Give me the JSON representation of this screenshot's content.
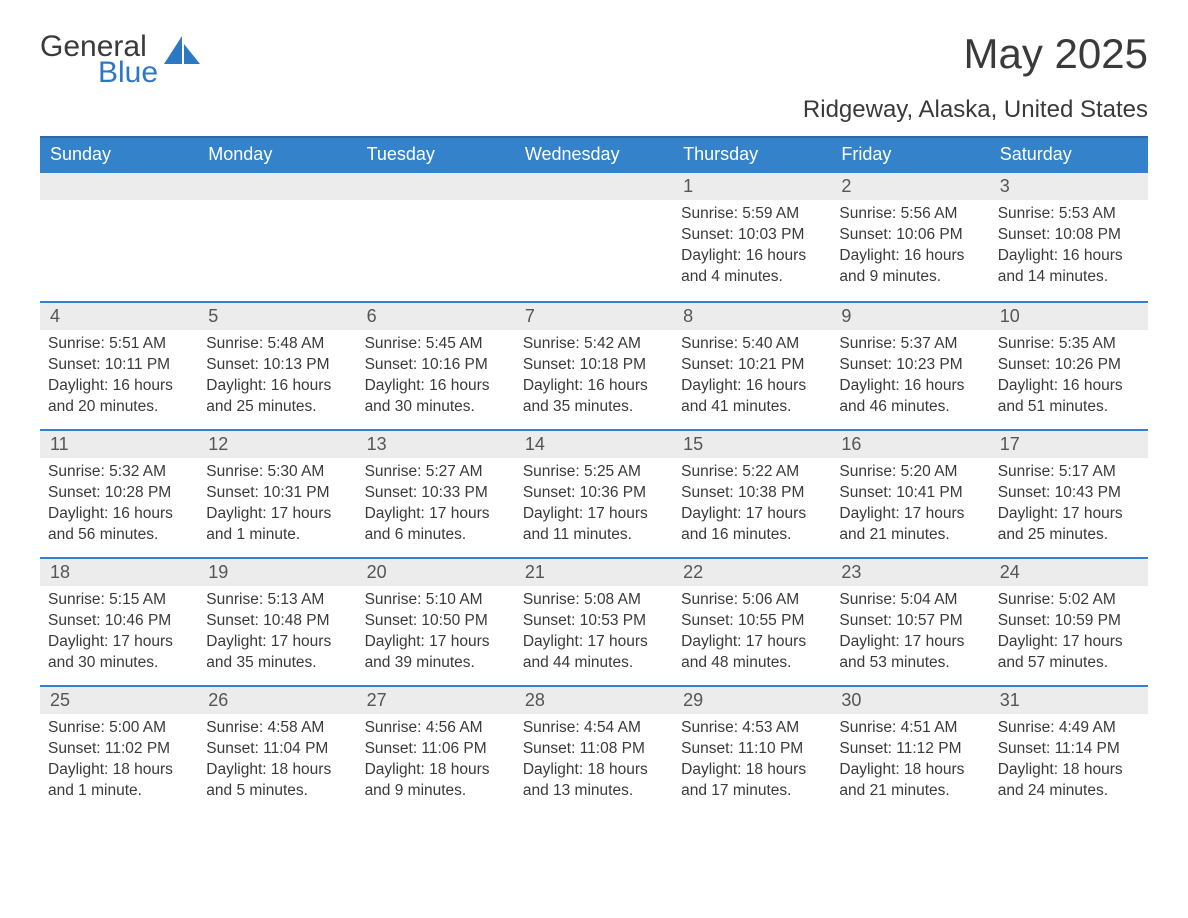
{
  "logo": {
    "text1": "General",
    "text2": "Blue",
    "accent_color": "#2d78c3"
  },
  "title": "May 2025",
  "location": "Ridgeway, Alaska, United States",
  "colors": {
    "header_bg": "#3482c9",
    "header_border": "#2d6aa8",
    "row_divider": "#3482c9",
    "daynum_bg": "#ececec",
    "text": "#3a3a3a",
    "background": "#ffffff"
  },
  "fonts": {
    "title_size": 42,
    "location_size": 24,
    "dow_size": 18,
    "body_size": 15.5
  },
  "days_of_week": [
    "Sunday",
    "Monday",
    "Tuesday",
    "Wednesday",
    "Thursday",
    "Friday",
    "Saturday"
  ],
  "weeks": [
    [
      {
        "n": "",
        "sunrise": "",
        "sunset": "",
        "daylight": ""
      },
      {
        "n": "",
        "sunrise": "",
        "sunset": "",
        "daylight": ""
      },
      {
        "n": "",
        "sunrise": "",
        "sunset": "",
        "daylight": ""
      },
      {
        "n": "",
        "sunrise": "",
        "sunset": "",
        "daylight": ""
      },
      {
        "n": "1",
        "sunrise": "Sunrise: 5:59 AM",
        "sunset": "Sunset: 10:03 PM",
        "daylight": "Daylight: 16 hours and 4 minutes."
      },
      {
        "n": "2",
        "sunrise": "Sunrise: 5:56 AM",
        "sunset": "Sunset: 10:06 PM",
        "daylight": "Daylight: 16 hours and 9 minutes."
      },
      {
        "n": "3",
        "sunrise": "Sunrise: 5:53 AM",
        "sunset": "Sunset: 10:08 PM",
        "daylight": "Daylight: 16 hours and 14 minutes."
      }
    ],
    [
      {
        "n": "4",
        "sunrise": "Sunrise: 5:51 AM",
        "sunset": "Sunset: 10:11 PM",
        "daylight": "Daylight: 16 hours and 20 minutes."
      },
      {
        "n": "5",
        "sunrise": "Sunrise: 5:48 AM",
        "sunset": "Sunset: 10:13 PM",
        "daylight": "Daylight: 16 hours and 25 minutes."
      },
      {
        "n": "6",
        "sunrise": "Sunrise: 5:45 AM",
        "sunset": "Sunset: 10:16 PM",
        "daylight": "Daylight: 16 hours and 30 minutes."
      },
      {
        "n": "7",
        "sunrise": "Sunrise: 5:42 AM",
        "sunset": "Sunset: 10:18 PM",
        "daylight": "Daylight: 16 hours and 35 minutes."
      },
      {
        "n": "8",
        "sunrise": "Sunrise: 5:40 AM",
        "sunset": "Sunset: 10:21 PM",
        "daylight": "Daylight: 16 hours and 41 minutes."
      },
      {
        "n": "9",
        "sunrise": "Sunrise: 5:37 AM",
        "sunset": "Sunset: 10:23 PM",
        "daylight": "Daylight: 16 hours and 46 minutes."
      },
      {
        "n": "10",
        "sunrise": "Sunrise: 5:35 AM",
        "sunset": "Sunset: 10:26 PM",
        "daylight": "Daylight: 16 hours and 51 minutes."
      }
    ],
    [
      {
        "n": "11",
        "sunrise": "Sunrise: 5:32 AM",
        "sunset": "Sunset: 10:28 PM",
        "daylight": "Daylight: 16 hours and 56 minutes."
      },
      {
        "n": "12",
        "sunrise": "Sunrise: 5:30 AM",
        "sunset": "Sunset: 10:31 PM",
        "daylight": "Daylight: 17 hours and 1 minute."
      },
      {
        "n": "13",
        "sunrise": "Sunrise: 5:27 AM",
        "sunset": "Sunset: 10:33 PM",
        "daylight": "Daylight: 17 hours and 6 minutes."
      },
      {
        "n": "14",
        "sunrise": "Sunrise: 5:25 AM",
        "sunset": "Sunset: 10:36 PM",
        "daylight": "Daylight: 17 hours and 11 minutes."
      },
      {
        "n": "15",
        "sunrise": "Sunrise: 5:22 AM",
        "sunset": "Sunset: 10:38 PM",
        "daylight": "Daylight: 17 hours and 16 minutes."
      },
      {
        "n": "16",
        "sunrise": "Sunrise: 5:20 AM",
        "sunset": "Sunset: 10:41 PM",
        "daylight": "Daylight: 17 hours and 21 minutes."
      },
      {
        "n": "17",
        "sunrise": "Sunrise: 5:17 AM",
        "sunset": "Sunset: 10:43 PM",
        "daylight": "Daylight: 17 hours and 25 minutes."
      }
    ],
    [
      {
        "n": "18",
        "sunrise": "Sunrise: 5:15 AM",
        "sunset": "Sunset: 10:46 PM",
        "daylight": "Daylight: 17 hours and 30 minutes."
      },
      {
        "n": "19",
        "sunrise": "Sunrise: 5:13 AM",
        "sunset": "Sunset: 10:48 PM",
        "daylight": "Daylight: 17 hours and 35 minutes."
      },
      {
        "n": "20",
        "sunrise": "Sunrise: 5:10 AM",
        "sunset": "Sunset: 10:50 PM",
        "daylight": "Daylight: 17 hours and 39 minutes."
      },
      {
        "n": "21",
        "sunrise": "Sunrise: 5:08 AM",
        "sunset": "Sunset: 10:53 PM",
        "daylight": "Daylight: 17 hours and 44 minutes."
      },
      {
        "n": "22",
        "sunrise": "Sunrise: 5:06 AM",
        "sunset": "Sunset: 10:55 PM",
        "daylight": "Daylight: 17 hours and 48 minutes."
      },
      {
        "n": "23",
        "sunrise": "Sunrise: 5:04 AM",
        "sunset": "Sunset: 10:57 PM",
        "daylight": "Daylight: 17 hours and 53 minutes."
      },
      {
        "n": "24",
        "sunrise": "Sunrise: 5:02 AM",
        "sunset": "Sunset: 10:59 PM",
        "daylight": "Daylight: 17 hours and 57 minutes."
      }
    ],
    [
      {
        "n": "25",
        "sunrise": "Sunrise: 5:00 AM",
        "sunset": "Sunset: 11:02 PM",
        "daylight": "Daylight: 18 hours and 1 minute."
      },
      {
        "n": "26",
        "sunrise": "Sunrise: 4:58 AM",
        "sunset": "Sunset: 11:04 PM",
        "daylight": "Daylight: 18 hours and 5 minutes."
      },
      {
        "n": "27",
        "sunrise": "Sunrise: 4:56 AM",
        "sunset": "Sunset: 11:06 PM",
        "daylight": "Daylight: 18 hours and 9 minutes."
      },
      {
        "n": "28",
        "sunrise": "Sunrise: 4:54 AM",
        "sunset": "Sunset: 11:08 PM",
        "daylight": "Daylight: 18 hours and 13 minutes."
      },
      {
        "n": "29",
        "sunrise": "Sunrise: 4:53 AM",
        "sunset": "Sunset: 11:10 PM",
        "daylight": "Daylight: 18 hours and 17 minutes."
      },
      {
        "n": "30",
        "sunrise": "Sunrise: 4:51 AM",
        "sunset": "Sunset: 11:12 PM",
        "daylight": "Daylight: 18 hours and 21 minutes."
      },
      {
        "n": "31",
        "sunrise": "Sunrise: 4:49 AM",
        "sunset": "Sunset: 11:14 PM",
        "daylight": "Daylight: 18 hours and 24 minutes."
      }
    ]
  ]
}
